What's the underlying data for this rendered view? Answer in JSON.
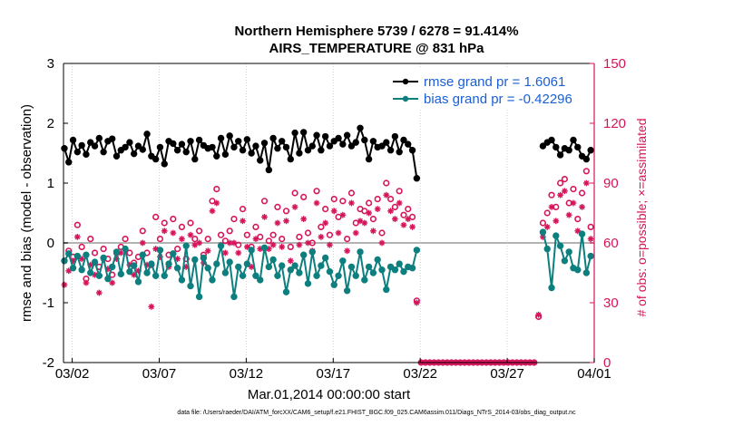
{
  "chart_data": {
    "type": "line",
    "title": "Northern Hemisphere 5739 / 6278 = 91.414%",
    "subtitle": "AIRS_TEMPERATURE @ 831 hPa",
    "xlabel": "Mar.01,2014 00:00:00 start",
    "ylabel": "rmse and bias (model - observation)",
    "ylabel_right": "# of obs: o=possible; ×=assimilated",
    "ylim": [
      -2,
      3
    ],
    "ylim_right": [
      0,
      150
    ],
    "yticks": [
      "-2",
      "-1",
      "0",
      "1",
      "2",
      "3"
    ],
    "yticks_right": [
      "0",
      "30",
      "60",
      "90",
      "120",
      "150"
    ],
    "xlim": [
      1.5,
      32
    ],
    "xticks": [
      {
        "day": 2,
        "label": "03/02"
      },
      {
        "day": 7,
        "label": "03/07"
      },
      {
        "day": 12,
        "label": "03/12"
      },
      {
        "day": 17,
        "label": "03/17"
      },
      {
        "day": 22,
        "label": "03/22"
      },
      {
        "day": 27,
        "label": "03/27"
      },
      {
        "day": 32,
        "label": "04/01"
      }
    ],
    "legend": {
      "position": "top-right",
      "entries": [
        {
          "label": "rmse grand pr = 1.6061",
          "color": "#000000"
        },
        {
          "label": "bias grand pr = -0.42296",
          "color": "#0e7f7f"
        }
      ]
    },
    "colors": {
      "rmse": "#000000",
      "bias": "#0e7f7f",
      "obs": "#d6145a",
      "zero_line": "#b3b3b3",
      "label_text": "#1a5fd6"
    },
    "series": [
      {
        "name": "rmse",
        "segments": [
          {
            "x": [
              1.55,
              1.8,
              2.05,
              2.3,
              2.55,
              2.8,
              3.05,
              3.3,
              3.55,
              3.8,
              4.05,
              4.3,
              4.55,
              4.8,
              5.05,
              5.3,
              5.55,
              5.8,
              6.05,
              6.3,
              6.55,
              6.8,
              7.05,
              7.3,
              7.55,
              7.8,
              8.05,
              8.3,
              8.55,
              8.8,
              9.05,
              9.3,
              9.55,
              9.8,
              10.05,
              10.3,
              10.55,
              10.8,
              11.05,
              11.3,
              11.55,
              11.8,
              12.05,
              12.3,
              12.55,
              12.8,
              13.05,
              13.3,
              13.55,
              13.8,
              14.05,
              14.3,
              14.55,
              14.8,
              15.05,
              15.3,
              15.55,
              15.8,
              16.05,
              16.3,
              16.55,
              16.8,
              17.05,
              17.3,
              17.55,
              17.8,
              18.05,
              18.3,
              18.55,
              18.8,
              19.05,
              19.3,
              19.55,
              19.8,
              20.05,
              20.3,
              20.55,
              20.8,
              21.05,
              21.3,
              21.55,
              21.8
            ],
            "values": [
              1.58,
              1.35,
              1.72,
              1.52,
              1.63,
              1.48,
              1.68,
              1.62,
              1.75,
              1.52,
              1.7,
              1.74,
              1.45,
              1.55,
              1.6,
              1.68,
              1.49,
              1.62,
              1.56,
              1.82,
              1.45,
              1.4,
              1.6,
              1.32,
              1.7,
              1.66,
              1.55,
              1.65,
              1.52,
              1.7,
              1.4,
              1.72,
              1.63,
              1.58,
              1.6,
              1.45,
              1.75,
              1.48,
              1.79,
              1.6,
              1.7,
              1.55,
              1.73,
              1.5,
              1.62,
              1.38,
              1.67,
              1.22,
              1.75,
              1.58,
              1.7,
              1.6,
              1.4,
              1.84,
              1.5,
              1.85,
              1.55,
              1.62,
              1.8,
              1.55,
              1.78,
              1.62,
              1.7,
              1.75,
              1.65,
              1.8,
              1.62,
              1.68,
              1.92,
              1.72,
              1.4,
              1.7,
              1.6,
              1.62,
              1.68,
              1.55,
              1.78,
              1.52,
              1.72,
              1.65,
              1.55,
              1.08
            ]
          },
          {
            "x": [
              29.05,
              29.3,
              29.55,
              29.8,
              30.05,
              30.3,
              30.55,
              30.8,
              31.05,
              31.3,
              31.55,
              31.8
            ],
            "values": [
              1.62,
              1.68,
              1.72,
              1.6,
              1.47,
              1.58,
              1.55,
              1.72,
              1.6,
              1.45,
              1.4,
              1.55
            ]
          }
        ]
      },
      {
        "name": "bias",
        "segments": [
          {
            "x": [
              1.55,
              1.8,
              2.05,
              2.3,
              2.55,
              2.8,
              3.05,
              3.3,
              3.55,
              3.8,
              4.05,
              4.3,
              4.55,
              4.8,
              5.05,
              5.3,
              5.55,
              5.8,
              6.05,
              6.3,
              6.55,
              6.8,
              7.05,
              7.3,
              7.55,
              7.8,
              8.05,
              8.3,
              8.55,
              8.8,
              9.05,
              9.3,
              9.55,
              9.8,
              10.05,
              10.3,
              10.55,
              10.8,
              11.05,
              11.3,
              11.55,
              11.8,
              12.05,
              12.3,
              12.55,
              12.8,
              13.05,
              13.3,
              13.55,
              13.8,
              14.05,
              14.3,
              14.55,
              14.8,
              15.05,
              15.3,
              15.55,
              15.8,
              16.05,
              16.3,
              16.55,
              16.8,
              17.05,
              17.3,
              17.55,
              17.8,
              18.05,
              18.3,
              18.55,
              18.8,
              19.05,
              19.3,
              19.55,
              19.8,
              20.05,
              20.3,
              20.55,
              20.8,
              21.05,
              21.3,
              21.55,
              21.8
            ],
            "values": [
              -0.3,
              -0.18,
              -0.42,
              -0.22,
              -0.45,
              -0.2,
              -0.5,
              -0.32,
              -0.55,
              -0.25,
              -0.6,
              -0.4,
              -0.15,
              -0.52,
              -0.1,
              -0.48,
              -0.38,
              -0.65,
              -0.2,
              -0.5,
              -0.35,
              -0.55,
              -0.12,
              -0.55,
              -0.35,
              -0.18,
              -0.42,
              -0.62,
              -0.05,
              -0.72,
              -0.28,
              -0.9,
              -0.25,
              -0.42,
              -0.62,
              -0.35,
              -0.05,
              -0.5,
              -0.32,
              -0.9,
              -0.4,
              -0.55,
              -0.35,
              -0.12,
              -0.55,
              -0.62,
              -0.08,
              -0.4,
              -0.28,
              -0.55,
              -0.38,
              -0.82,
              -0.45,
              -0.38,
              -0.5,
              -0.2,
              -0.68,
              -0.15,
              -0.55,
              -0.38,
              -0.25,
              -0.48,
              -0.7,
              -0.55,
              -0.3,
              -0.8,
              -0.4,
              -0.55,
              -0.15,
              -0.62,
              -0.4,
              -0.5,
              -0.28,
              -0.45,
              -0.78,
              -0.4,
              -0.45,
              -0.35,
              -0.48,
              -0.4,
              -0.42,
              -0.12
            ]
          },
          {
            "x": [
              29.05,
              29.3,
              29.55,
              29.8,
              30.05,
              30.3,
              30.55,
              30.8,
              31.05,
              31.3,
              31.55,
              31.8
            ],
            "values": [
              0.18,
              -0.1,
              -0.75,
              0.12,
              -0.05,
              -0.3,
              -0.15,
              -0.42,
              -0.45,
              0.15,
              -0.5,
              -0.22
            ]
          }
        ]
      },
      {
        "name": "obs possible",
        "x": [
          1.55,
          1.8,
          2.05,
          2.3,
          2.55,
          2.8,
          3.05,
          3.3,
          3.55,
          3.8,
          4.05,
          4.3,
          4.55,
          4.8,
          5.05,
          5.3,
          5.55,
          5.8,
          6.05,
          6.3,
          6.55,
          6.8,
          7.05,
          7.3,
          7.55,
          7.8,
          8.05,
          8.3,
          8.55,
          8.8,
          9.05,
          9.3,
          9.55,
          9.8,
          10.05,
          10.3,
          10.55,
          10.8,
          11.05,
          11.3,
          11.55,
          11.8,
          12.05,
          12.3,
          12.55,
          12.8,
          13.05,
          13.3,
          13.55,
          13.8,
          14.05,
          14.3,
          14.55,
          14.8,
          15.05,
          15.3,
          15.55,
          15.8,
          16.05,
          16.3,
          16.55,
          16.8,
          17.05,
          17.3,
          17.55,
          17.8,
          18.05,
          18.3,
          18.55,
          18.8,
          19.05,
          19.3,
          19.55,
          19.8,
          20.05,
          20.3,
          20.55,
          20.8,
          21.05,
          21.3,
          21.55,
          21.8,
          22.05,
          22.3,
          22.55,
          22.8,
          23.05,
          23.3,
          23.55,
          23.8,
          24.05,
          24.3,
          24.55,
          24.8,
          25.05,
          25.3,
          25.55,
          25.8,
          26.05,
          26.3,
          26.55,
          26.8,
          27.05,
          27.3,
          27.55,
          27.8,
          28.05,
          28.3,
          28.55,
          28.8,
          29.05,
          29.3,
          29.55,
          29.8,
          30.05,
          30.3,
          30.55,
          30.8,
          31.05,
          31.3,
          31.55,
          31.8
        ],
        "values": [
          51,
          56,
          53,
          69,
          58,
          42,
          62,
          55,
          48,
          57,
          52,
          44,
          55,
          58,
          62,
          55,
          50,
          53,
          66,
          55,
          49,
          73,
          62,
          70,
          54,
          72,
          57,
          68,
          52,
          70,
          62,
          66,
          54,
          62,
          81,
          87,
          64,
          61,
          66,
          72,
          59,
          77,
          64,
          58,
          68,
          63,
          81,
          61,
          64,
          78,
          62,
          76,
          58,
          85,
          63,
          83,
          65,
          60,
          86,
          68,
          77,
          64,
          82,
          73,
          81,
          62,
          85,
          70,
          77,
          76,
          80,
          72,
          82,
          65,
          90,
          82,
          78,
          86,
          74,
          77,
          73,
          31,
          0,
          0,
          0,
          0,
          0,
          0,
          0,
          0,
          0,
          0,
          0,
          0,
          0,
          0,
          0,
          0,
          0,
          0,
          0,
          0,
          0,
          0,
          0,
          0,
          0,
          0,
          0,
          23,
          70,
          75,
          84,
          78,
          90,
          92,
          80,
          87,
          72,
          85,
          96,
          68
        ]
      },
      {
        "name": "obs assimilated",
        "x": [
          1.55,
          1.8,
          2.05,
          2.3,
          2.55,
          2.8,
          3.05,
          3.3,
          3.55,
          3.8,
          4.05,
          4.3,
          4.55,
          4.8,
          5.05,
          5.3,
          5.55,
          5.8,
          6.05,
          6.3,
          6.55,
          6.8,
          7.05,
          7.3,
          7.55,
          7.8,
          8.05,
          8.3,
          8.55,
          8.8,
          9.05,
          9.3,
          9.55,
          9.8,
          10.05,
          10.3,
          10.55,
          10.8,
          11.05,
          11.3,
          11.55,
          11.8,
          12.05,
          12.3,
          12.55,
          12.8,
          13.05,
          13.3,
          13.55,
          13.8,
          14.05,
          14.3,
          14.55,
          14.8,
          15.05,
          15.3,
          15.55,
          15.8,
          16.05,
          16.3,
          16.55,
          16.8,
          17.05,
          17.3,
          17.55,
          17.8,
          18.05,
          18.3,
          18.55,
          18.8,
          19.05,
          19.3,
          19.55,
          19.8,
          20.05,
          20.3,
          20.55,
          20.8,
          21.05,
          21.3,
          21.55,
          21.8,
          22.05,
          22.3,
          22.55,
          22.8,
          23.05,
          23.3,
          23.55,
          23.8,
          24.05,
          24.3,
          24.55,
          24.8,
          25.05,
          25.3,
          25.55,
          25.8,
          26.05,
          26.3,
          26.55,
          26.8,
          27.05,
          27.3,
          27.55,
          27.8,
          28.05,
          28.3,
          28.55,
          28.8,
          29.05,
          29.3,
          29.55,
          29.8,
          30.05,
          30.3,
          30.55,
          30.8,
          31.05,
          31.3,
          31.55,
          31.8
        ],
        "values": [
          39,
          46,
          51,
          63,
          52,
          40,
          49,
          44,
          35,
          52,
          47,
          40,
          52,
          55,
          57,
          49,
          44,
          46,
          60,
          49,
          28,
          57,
          53,
          66,
          48,
          65,
          52,
          62,
          48,
          64,
          59,
          60,
          50,
          56,
          76,
          80,
          59,
          55,
          60,
          60,
          55,
          71,
          58,
          48,
          62,
          57,
          73,
          57,
          59,
          70,
          58,
          71,
          51,
          78,
          59,
          72,
          60,
          56,
          80,
          63,
          70,
          59,
          76,
          65,
          74,
          56,
          80,
          65,
          71,
          70,
          75,
          66,
          77,
          60,
          84,
          76,
          72,
          80,
          69,
          72,
          68,
          30,
          0,
          0,
          0,
          0,
          0,
          0,
          0,
          0,
          0,
          0,
          0,
          0,
          0,
          0,
          0,
          0,
          0,
          0,
          0,
          0,
          0,
          0,
          0,
          0,
          0,
          0,
          0,
          24,
          63,
          68,
          78,
          71,
          84,
          86,
          74,
          80,
          66,
          78,
          90,
          62
        ]
      }
    ]
  },
  "footnote": "data file: /Users/raeder/DAI/ATM_forcXX/CAM6_setup/f.e21.FHIST_BGC.f09_025.CAM6assim.011/Diags_NTrS_2014-03/obs_diag_output.nc"
}
